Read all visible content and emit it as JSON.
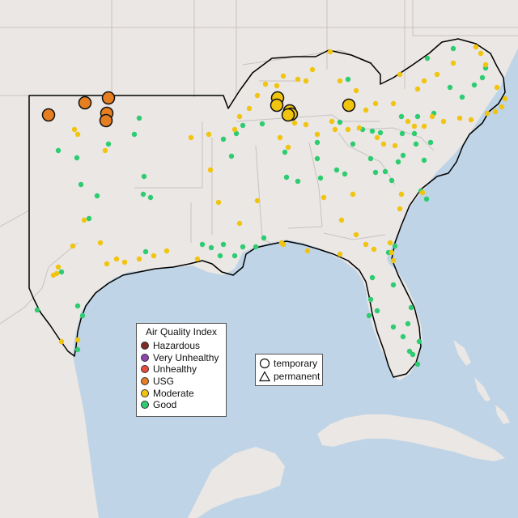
{
  "legend": {
    "title": "Air Quality Index",
    "categories": [
      {
        "label": "Hazardous",
        "color": "#7e2b26"
      },
      {
        "label": "Very Unhealthy",
        "color": "#8e44ad"
      },
      {
        "label": "Unhealthy",
        "color": "#e74c3c"
      },
      {
        "label": "USG",
        "color": "#e67e22"
      },
      {
        "label": "Moderate",
        "color": "#f1c40f"
      },
      {
        "label": "Good",
        "color": "#2ecc71"
      }
    ]
  },
  "monitor_types": {
    "temporary": "temporary",
    "permanent": "permanent"
  },
  "colors": {
    "water": "#bfd4e6",
    "land": "#eae7e4",
    "region_border": "#000000",
    "state_line": "#c9c2c2"
  }
}
